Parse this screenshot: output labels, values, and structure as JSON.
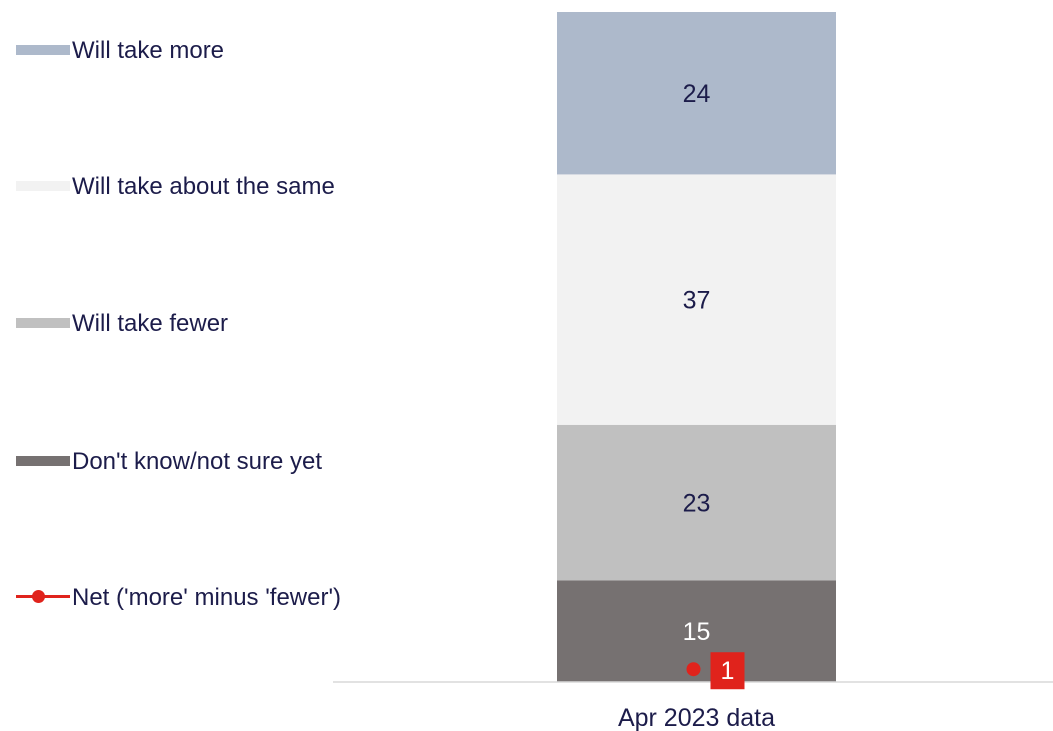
{
  "chart_data": {
    "type": "bar",
    "stacked": true,
    "categories": [
      "Apr 2023 data"
    ],
    "series": [
      {
        "name": "Will take more",
        "values": [
          24
        ],
        "color": "#adb9cb",
        "label_color": "#1c1c4a"
      },
      {
        "name": "Will take about the same",
        "values": [
          37
        ],
        "color": "#f2f2f2",
        "label_color": "#1c1c4a"
      },
      {
        "name": "Will take fewer",
        "values": [
          23
        ],
        "color": "#c0c0c0",
        "label_color": "#1c1c4a"
      },
      {
        "name": "Don't know/not sure yet",
        "values": [
          15
        ],
        "color": "#767171",
        "label_color": "#ffffff"
      }
    ],
    "net_series": {
      "name": "Net ('more' minus 'fewer')",
      "values": [
        1
      ],
      "color": "#e0231c"
    },
    "ylim": [
      0,
      99
    ],
    "legend_position": "left",
    "grid": false
  }
}
